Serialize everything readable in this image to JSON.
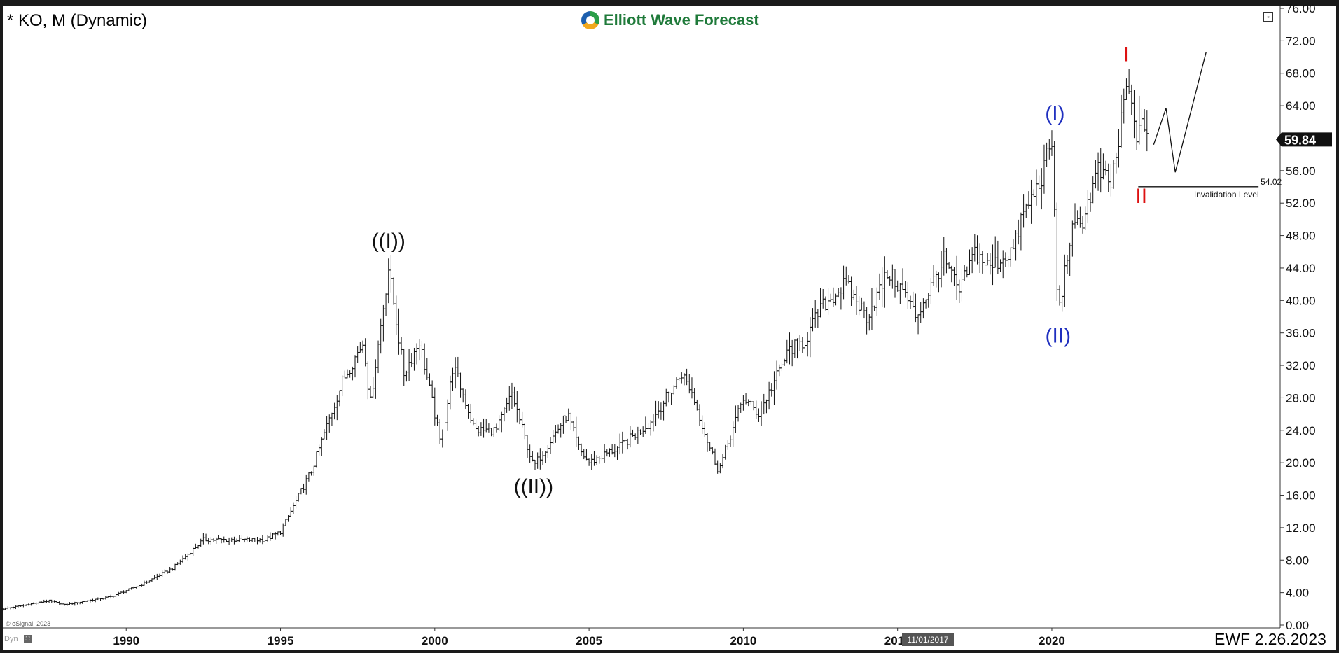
{
  "header": {
    "instrument": "* KO, M (Dynamic)",
    "logo_text": "Elliott Wave Forecast",
    "footer_id": "EWF 2.26.2023",
    "cursor_date": "11/01/2017",
    "watermark": "© eSignal, 2023",
    "dyn_label": "Dyn",
    "icons": [
      "logo-swirl-icon",
      "restore-window-icon",
      "dyn-toggle-icon"
    ]
  },
  "chart_data": {
    "type": "ohlc-bar",
    "title": "",
    "xlabel": "",
    "ylabel": "",
    "price_axis_side": "right",
    "xlim": [
      1986.0,
      2027.4
    ],
    "ylim": [
      0,
      76
    ],
    "y_ticks": [
      "0.00",
      "4.00",
      "8.00",
      "12.00",
      "16.00",
      "20.00",
      "24.00",
      "28.00",
      "32.00",
      "36.00",
      "40.00",
      "44.00",
      "48.00",
      "52.00",
      "56.00",
      "60.00",
      "64.00",
      "68.00",
      "72.00",
      "76.00"
    ],
    "x_ticks": [
      {
        "label": "1990",
        "x": 1990
      },
      {
        "label": "1995",
        "x": 1995
      },
      {
        "label": "2000",
        "x": 2000
      },
      {
        "label": "2005",
        "x": 2005
      },
      {
        "label": "2010",
        "x": 2010
      },
      {
        "label": "2015",
        "x": 2015
      },
      {
        "label": "2020",
        "x": 2020
      }
    ],
    "price_path": [
      [
        1986.0,
        2.0
      ],
      [
        1987.5,
        3.0
      ],
      [
        1988.0,
        2.5
      ],
      [
        1989.5,
        3.5
      ],
      [
        1990.5,
        5.0
      ],
      [
        1991.5,
        7.0
      ],
      [
        1992.5,
        10.5
      ],
      [
        1993.5,
        10.5
      ],
      [
        1994.5,
        10.5
      ],
      [
        1995.0,
        11.5
      ],
      [
        1996.0,
        19.0
      ],
      [
        1997.0,
        30.0
      ],
      [
        1997.7,
        35.0
      ],
      [
        1997.9,
        27.0
      ],
      [
        1998.5,
        44.0
      ],
      [
        1999.0,
        31.0
      ],
      [
        1999.5,
        35.0
      ],
      [
        2000.0,
        26.0
      ],
      [
        2000.2,
        22.0
      ],
      [
        2000.6,
        32.0
      ],
      [
        2001.3,
        24.0
      ],
      [
        2002.0,
        24.0
      ],
      [
        2002.5,
        28.5
      ],
      [
        2003.2,
        19.5
      ],
      [
        2004.3,
        26.0
      ],
      [
        2004.7,
        21.5
      ],
      [
        2005.0,
        20.0
      ],
      [
        2006.0,
        22.0
      ],
      [
        2007.0,
        25.0
      ],
      [
        2008.0,
        31.0
      ],
      [
        2008.3,
        29.0
      ],
      [
        2008.9,
        22.0
      ],
      [
        2009.2,
        19.0
      ],
      [
        2010.0,
        28.0
      ],
      [
        2010.5,
        26.0
      ],
      [
        2011.5,
        34.0
      ],
      [
        2012.0,
        35.0
      ],
      [
        2012.5,
        39.0
      ],
      [
        2013.3,
        42.0
      ],
      [
        2014.0,
        38.0
      ],
      [
        2014.7,
        43.5
      ],
      [
        2015.2,
        41.0
      ],
      [
        2015.6,
        38.0
      ],
      [
        2016.5,
        45.0
      ],
      [
        2017.0,
        41.0
      ],
      [
        2017.5,
        46.0
      ],
      [
        2018.0,
        44.0
      ],
      [
        2018.8,
        46.5
      ],
      [
        2019.0,
        50.0
      ],
      [
        2019.6,
        54.5
      ],
      [
        2020.0,
        59.5
      ],
      [
        2020.2,
        38.0
      ],
      [
        2020.6,
        48.0
      ],
      [
        2021.0,
        50.0
      ],
      [
        2021.5,
        56.0
      ],
      [
        2021.9,
        54.0
      ],
      [
        2022.2,
        60.0
      ],
      [
        2022.4,
        66.5
      ],
      [
        2022.8,
        60.0
      ],
      [
        2023.0,
        62.0
      ],
      [
        2023.15,
        59.84
      ]
    ],
    "last_price": 59.84,
    "last_price_label": "59.84",
    "wave_labels": [
      {
        "text": "((I))",
        "x": 1998.5,
        "y": 46.5,
        "color": "#111111"
      },
      {
        "text": "((II))",
        "x": 2003.2,
        "y": 16.2,
        "color": "#111111"
      },
      {
        "text": "(I)",
        "x": 2020.1,
        "y": 62.2,
        "color": "#1f2fbf"
      },
      {
        "text": "(II)",
        "x": 2020.2,
        "y": 34.8,
        "color": "#1f2fbf"
      },
      {
        "text": "I",
        "x": 2022.4,
        "y": 69.5,
        "color": "#dd1111"
      },
      {
        "text": "II",
        "x": 2022.9,
        "y": 52.0,
        "color": "#dd1111"
      }
    ],
    "projection_path": [
      [
        2023.3,
        59.2
      ],
      [
        2023.7,
        63.7
      ],
      [
        2024.0,
        55.8
      ],
      [
        2025.0,
        70.6
      ]
    ],
    "invalidation": {
      "price": 54.02,
      "price_label": "54.02",
      "label": "Invalidation Level",
      "x_start": 2022.8,
      "x_end": 2026.7
    },
    "colors": {
      "bars": "#111111",
      "grid": "#cccccc",
      "axis_text": "#111111",
      "price_tag_bg": "#111111",
      "price_tag_text": "#ffffff"
    }
  }
}
